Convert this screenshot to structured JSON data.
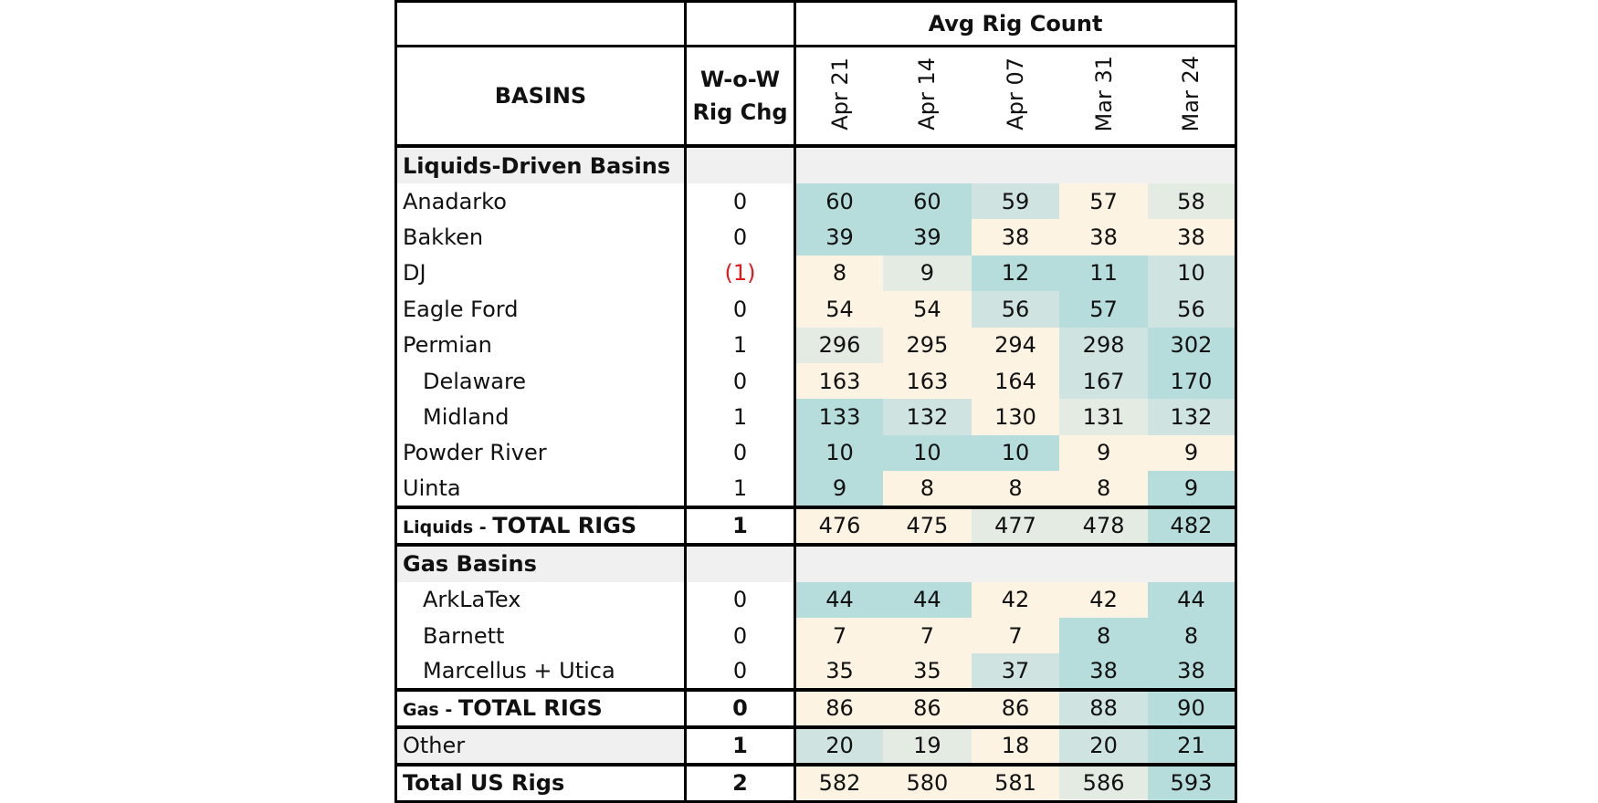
{
  "chart_data": {
    "type": "table",
    "header": {
      "group_label": "Avg Rig Count",
      "basins_label": "BASINS",
      "chg_label_line1": "W-o-W",
      "chg_label_line2": "Rig Chg",
      "months": [
        "Apr 21",
        "Apr 14",
        "Apr 07",
        "Mar 31",
        "Mar 24"
      ]
    },
    "sections": [
      {
        "label": "Liquids-Driven Basins",
        "rows": [
          {
            "name": "Anadarko",
            "indent": false,
            "chg": "0",
            "values": [
              60,
              60,
              59,
              57,
              58
            ]
          },
          {
            "name": "Bakken",
            "indent": false,
            "chg": "0",
            "values": [
              39,
              39,
              38,
              38,
              38
            ]
          },
          {
            "name": "DJ",
            "indent": false,
            "chg": "(1)",
            "values": [
              8,
              9,
              12,
              11,
              10
            ]
          },
          {
            "name": "Eagle Ford",
            "indent": false,
            "chg": "0",
            "values": [
              54,
              54,
              56,
              57,
              56
            ]
          },
          {
            "name": "Permian",
            "indent": false,
            "chg": "1",
            "values": [
              296,
              295,
              294,
              298,
              302
            ]
          },
          {
            "name": "Delaware",
            "indent": true,
            "chg": "0",
            "values": [
              163,
              163,
              164,
              167,
              170
            ]
          },
          {
            "name": "Midland",
            "indent": true,
            "chg": "1",
            "values": [
              133,
              132,
              130,
              131,
              132
            ]
          },
          {
            "name": "Powder River",
            "indent": false,
            "chg": "0",
            "values": [
              10,
              10,
              10,
              9,
              9
            ]
          },
          {
            "name": "Uinta",
            "indent": false,
            "chg": "1",
            "values": [
              9,
              8,
              8,
              8,
              9
            ]
          }
        ],
        "total": {
          "prefix": "Liquids - ",
          "label": "TOTAL RIGS",
          "chg": "1",
          "values": [
            476,
            475,
            477,
            478,
            482
          ]
        }
      },
      {
        "label": "Gas Basins",
        "rows": [
          {
            "name": "ArkLaTex",
            "indent": true,
            "chg": "0",
            "values": [
              44,
              44,
              42,
              42,
              44
            ]
          },
          {
            "name": "Barnett",
            "indent": true,
            "chg": "0",
            "values": [
              7,
              7,
              7,
              8,
              8
            ]
          },
          {
            "name": "Marcellus + Utica",
            "indent": true,
            "chg": "0",
            "values": [
              35,
              35,
              37,
              38,
              38
            ]
          }
        ],
        "total": {
          "prefix": "Gas - ",
          "label": "TOTAL RIGS",
          "chg": "0",
          "values": [
            86,
            86,
            86,
            88,
            90
          ]
        }
      }
    ],
    "other": {
      "name": "Other",
      "chg": "1",
      "values": [
        20,
        19,
        18,
        20,
        21
      ]
    },
    "grand_total": {
      "name": "Total US Rigs",
      "chg": "2",
      "values": [
        582,
        580,
        581,
        586,
        593
      ]
    },
    "colors": {
      "high": "#b7dcdc",
      "mid_high": "#cfe4e0",
      "mid": "#e3ebe3",
      "low": "#fdf3e3",
      "negative_text": "#e0191b",
      "section_bg": "#f0f0f0"
    }
  }
}
